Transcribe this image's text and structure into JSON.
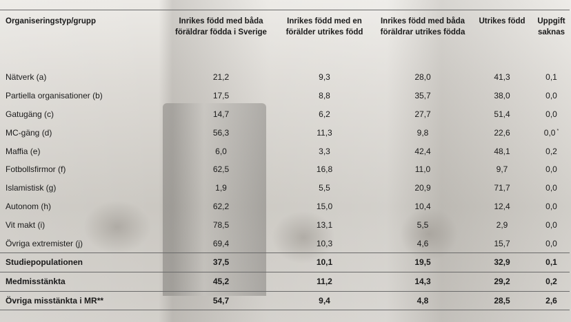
{
  "table": {
    "headers": [
      "Organiseringstyp/grupp",
      "Inrikes född med båda föräldrar födda i Sverige",
      "Inrikes född med en förälder utrikes född",
      "Inrikes född med båda föräldrar utrikes födda",
      "Utrikes född",
      "Uppgift saknas"
    ],
    "rows": [
      {
        "label": "Nätverk (a)",
        "values": [
          "21,2",
          "9,3",
          "28,0",
          "41,3",
          "0,1"
        ]
      },
      {
        "label": "Partiella organisationer (b)",
        "values": [
          "17,5",
          "8,8",
          "35,7",
          "38,0",
          "0,0"
        ]
      },
      {
        "label": "Gatugäng (c)",
        "values": [
          "14,7",
          "6,2",
          "27,7",
          "51,4",
          "0,0"
        ]
      },
      {
        "label": "MC-gäng (d)",
        "values": [
          "56,3",
          "11,3",
          "9,8",
          "22,6",
          "0,0"
        ],
        "note": "*"
      },
      {
        "label": "Maffia (e)",
        "values": [
          "6,0",
          "3,3",
          "42,4",
          "48,1",
          "0,2"
        ]
      },
      {
        "label": "Fotbollsfirmor (f)",
        "values": [
          "62,5",
          "16,8",
          "11,0",
          "9,7",
          "0,0"
        ]
      },
      {
        "label": "Islamistisk (g)",
        "values": [
          "1,9",
          "5,5",
          "20,9",
          "71,7",
          "0,0"
        ]
      },
      {
        "label": "Autonom (h)",
        "values": [
          "62,2",
          "15,0",
          "10,4",
          "12,4",
          "0,0"
        ]
      },
      {
        "label": "Vit makt (i)",
        "values": [
          "78,5",
          "13,1",
          "5,5",
          "2,9",
          "0,0"
        ]
      },
      {
        "label": "Övriga extremister (j)",
        "values": [
          "69,4",
          "10,3",
          "4,6",
          "15,7",
          "0,0"
        ]
      }
    ],
    "summary_rows": [
      {
        "label": "Studiepopulationen",
        "values": [
          "37,5",
          "10,1",
          "19,5",
          "32,9",
          "0,1"
        ]
      },
      {
        "label": "Medmisstänkta",
        "values": [
          "45,2",
          "11,2",
          "14,3",
          "29,2",
          "0,2"
        ]
      },
      {
        "label": "Övriga misstänkta i MR**",
        "values": [
          "54,7",
          "9,4",
          "4,8",
          "28,5",
          "2,6"
        ]
      }
    ]
  }
}
